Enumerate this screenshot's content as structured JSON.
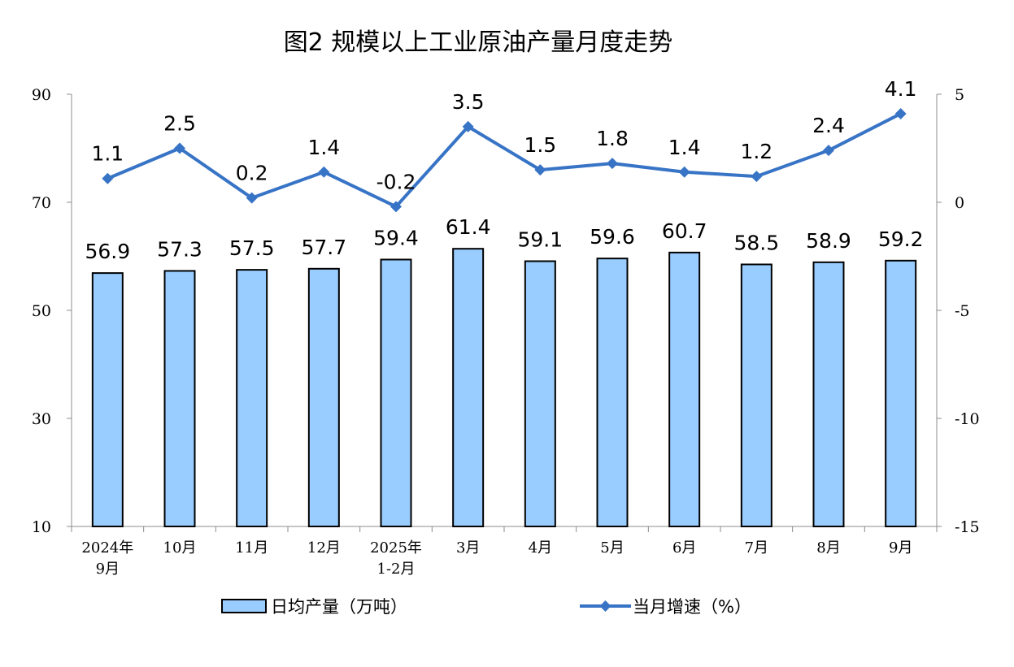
{
  "chart_data": {
    "type": "bar+line",
    "title": "图2 规模以上工业原油产量月度走势",
    "categories": [
      [
        "2024年",
        "9月"
      ],
      [
        "10月"
      ],
      [
        "11月"
      ],
      [
        "12月"
      ],
      [
        "2025年",
        "1-2月"
      ],
      [
        "3月"
      ],
      [
        "4月"
      ],
      [
        "5月"
      ],
      [
        "6月"
      ],
      [
        "7月"
      ],
      [
        "8月"
      ],
      [
        "9月"
      ]
    ],
    "series": [
      {
        "name": "日均产量（万吨）",
        "type": "bar",
        "axis": "left",
        "color": "#99CCFF",
        "values": [
          56.9,
          57.3,
          57.5,
          57.7,
          59.4,
          61.4,
          59.1,
          59.6,
          60.7,
          58.5,
          58.9,
          59.2
        ]
      },
      {
        "name": "当月增速（%）",
        "type": "line",
        "axis": "right",
        "color": "#3874C6",
        "values": [
          1.1,
          2.5,
          0.2,
          1.4,
          -0.2,
          3.5,
          1.5,
          1.8,
          1.4,
          1.2,
          2.4,
          4.1
        ]
      }
    ],
    "y_left": {
      "range": [
        10,
        90
      ],
      "ticks": [
        10,
        30,
        50,
        70,
        90
      ]
    },
    "y_right": {
      "range": [
        -15,
        5
      ],
      "ticks": [
        -15,
        -10,
        -5,
        0,
        5
      ]
    },
    "grid": false,
    "legend_position": "bottom"
  }
}
